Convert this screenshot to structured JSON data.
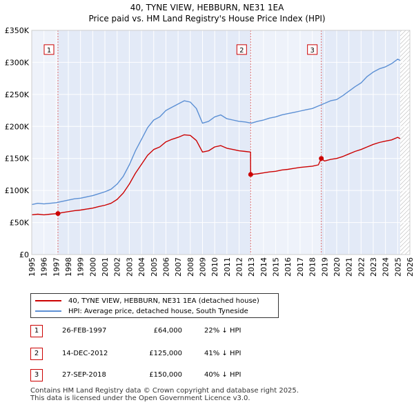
{
  "title": {
    "line1": "40, TYNE VIEW, HEBBURN, NE31 1EA",
    "line2": "Price paid vs. HM Land Registry's House Price Index (HPI)"
  },
  "chart_data": {
    "type": "line",
    "title": "40, TYNE VIEW, HEBBURN, NE31 1EA — Price paid vs. HM Land Registry's House Price Index (HPI)",
    "xlim": [
      1995,
      2026
    ],
    "ylim": [
      0,
      350000
    ],
    "x_ticks": [
      "1995",
      "1996",
      "1997",
      "1998",
      "1999",
      "2000",
      "2001",
      "2002",
      "2003",
      "2004",
      "2005",
      "2006",
      "2007",
      "2008",
      "2009",
      "2010",
      "2011",
      "2012",
      "2013",
      "2014",
      "2015",
      "2016",
      "2017",
      "2018",
      "2019",
      "2020",
      "2021",
      "2022",
      "2023",
      "2024",
      "2025",
      "2026"
    ],
    "y_ticks": [
      {
        "value": 0,
        "label": "£0"
      },
      {
        "value": 50000,
        "label": "£50K"
      },
      {
        "value": 100000,
        "label": "£100K"
      },
      {
        "value": 150000,
        "label": "£150K"
      },
      {
        "value": 200000,
        "label": "£200K"
      },
      {
        "value": 250000,
        "label": "£250K"
      },
      {
        "value": 300000,
        "label": "£300K"
      },
      {
        "value": 350000,
        "label": "£350K"
      }
    ],
    "data_end_year": 2025.2,
    "series": [
      {
        "name": "HPI: Average price, detached house, South Tyneside",
        "color": "#5b8fd4",
        "points": [
          [
            1995.0,
            78000
          ],
          [
            1995.5,
            80000
          ],
          [
            1996.0,
            79000
          ],
          [
            1996.5,
            80000
          ],
          [
            1997.0,
            81000
          ],
          [
            1997.5,
            83000
          ],
          [
            1998.0,
            85000
          ],
          [
            1998.5,
            87000
          ],
          [
            1999.0,
            88000
          ],
          [
            1999.5,
            90000
          ],
          [
            2000.0,
            92000
          ],
          [
            2000.5,
            95000
          ],
          [
            2001.0,
            98000
          ],
          [
            2001.5,
            102000
          ],
          [
            2002.0,
            110000
          ],
          [
            2002.5,
            122000
          ],
          [
            2003.0,
            140000
          ],
          [
            2003.5,
            162000
          ],
          [
            2004.0,
            180000
          ],
          [
            2004.5,
            198000
          ],
          [
            2005.0,
            210000
          ],
          [
            2005.5,
            215000
          ],
          [
            2006.0,
            225000
          ],
          [
            2006.5,
            230000
          ],
          [
            2007.0,
            235000
          ],
          [
            2007.5,
            240000
          ],
          [
            2008.0,
            238000
          ],
          [
            2008.5,
            228000
          ],
          [
            2009.0,
            205000
          ],
          [
            2009.5,
            208000
          ],
          [
            2010.0,
            215000
          ],
          [
            2010.5,
            218000
          ],
          [
            2011.0,
            212000
          ],
          [
            2011.5,
            210000
          ],
          [
            2012.0,
            208000
          ],
          [
            2012.5,
            207000
          ],
          [
            2013.0,
            205000
          ],
          [
            2013.5,
            208000
          ],
          [
            2014.0,
            210000
          ],
          [
            2014.5,
            213000
          ],
          [
            2015.0,
            215000
          ],
          [
            2015.5,
            218000
          ],
          [
            2016.0,
            220000
          ],
          [
            2016.5,
            222000
          ],
          [
            2017.0,
            224000
          ],
          [
            2017.5,
            226000
          ],
          [
            2018.0,
            228000
          ],
          [
            2018.5,
            232000
          ],
          [
            2019.0,
            236000
          ],
          [
            2019.5,
            240000
          ],
          [
            2020.0,
            242000
          ],
          [
            2020.5,
            248000
          ],
          [
            2021.0,
            255000
          ],
          [
            2021.5,
            262000
          ],
          [
            2022.0,
            268000
          ],
          [
            2022.5,
            278000
          ],
          [
            2023.0,
            285000
          ],
          [
            2023.5,
            290000
          ],
          [
            2024.0,
            293000
          ],
          [
            2024.5,
            298000
          ],
          [
            2025.0,
            305000
          ],
          [
            2025.2,
            303000
          ]
        ]
      },
      {
        "name": "40, TYNE VIEW, HEBBURN, NE31 1EA (detached house)",
        "color": "#cc0000",
        "points": [
          [
            1995.0,
            62000
          ],
          [
            1995.5,
            63000
          ],
          [
            1996.0,
            62000
          ],
          [
            1996.5,
            63000
          ],
          [
            1997.15,
            64000
          ],
          [
            1997.5,
            65500
          ],
          [
            1998.0,
            67000
          ],
          [
            1998.5,
            68500
          ],
          [
            1999.0,
            69500
          ],
          [
            1999.5,
            71000
          ],
          [
            2000.0,
            72500
          ],
          [
            2000.5,
            75000
          ],
          [
            2001.0,
            77000
          ],
          [
            2001.5,
            80000
          ],
          [
            2002.0,
            86000
          ],
          [
            2002.5,
            96000
          ],
          [
            2003.0,
            110000
          ],
          [
            2003.5,
            127000
          ],
          [
            2004.0,
            141000
          ],
          [
            2004.5,
            155000
          ],
          [
            2005.0,
            164000
          ],
          [
            2005.5,
            168000
          ],
          [
            2006.0,
            176000
          ],
          [
            2006.5,
            180000
          ],
          [
            2007.0,
            183000
          ],
          [
            2007.5,
            187000
          ],
          [
            2008.0,
            186000
          ],
          [
            2008.5,
            178000
          ],
          [
            2009.0,
            160000
          ],
          [
            2009.5,
            162000
          ],
          [
            2010.0,
            168000
          ],
          [
            2010.5,
            170000
          ],
          [
            2011.0,
            166000
          ],
          [
            2011.5,
            164000
          ],
          [
            2012.0,
            162000
          ],
          [
            2012.5,
            161000
          ],
          [
            2012.94,
            160000
          ],
          [
            2012.95,
            125000
          ],
          [
            2013.5,
            126000
          ],
          [
            2014.0,
            127500
          ],
          [
            2014.5,
            129000
          ],
          [
            2015.0,
            130000
          ],
          [
            2015.5,
            132000
          ],
          [
            2016.0,
            133000
          ],
          [
            2016.5,
            134500
          ],
          [
            2017.0,
            136000
          ],
          [
            2017.5,
            137000
          ],
          [
            2018.0,
            138000
          ],
          [
            2018.5,
            140000
          ],
          [
            2018.74,
            150000
          ],
          [
            2019.0,
            146000
          ],
          [
            2019.5,
            148500
          ],
          [
            2020.0,
            150000
          ],
          [
            2020.5,
            153000
          ],
          [
            2021.0,
            157000
          ],
          [
            2021.5,
            161000
          ],
          [
            2022.0,
            164000
          ],
          [
            2022.5,
            168000
          ],
          [
            2023.0,
            172000
          ],
          [
            2023.5,
            175000
          ],
          [
            2024.0,
            177000
          ],
          [
            2024.5,
            179000
          ],
          [
            2025.0,
            183000
          ],
          [
            2025.2,
            181000
          ]
        ]
      }
    ],
    "annotations": [
      {
        "label": "1",
        "x": 1997.15,
        "y": 64000,
        "label_y": 320000
      },
      {
        "label": "2",
        "x": 2012.95,
        "y": 125000,
        "label_y": 320000
      },
      {
        "label": "3",
        "x": 2018.74,
        "y": 150000,
        "label_y": 320000
      }
    ]
  },
  "legend": {
    "items": [
      {
        "label": "40, TYNE VIEW, HEBBURN, NE31 1EA (detached house)",
        "color": "#cc0000"
      },
      {
        "label": "HPI: Average price, detached house, South Tyneside",
        "color": "#5b8fd4"
      }
    ]
  },
  "sales": [
    {
      "num": "1",
      "date": "26-FEB-1997",
      "price": "£64,000",
      "hpi": "22% ↓ HPI"
    },
    {
      "num": "2",
      "date": "14-DEC-2012",
      "price": "£125,000",
      "hpi": "41% ↓ HPI"
    },
    {
      "num": "3",
      "date": "27-SEP-2018",
      "price": "£150,000",
      "hpi": "40% ↓ HPI"
    }
  ],
  "footer": {
    "line1": "Contains HM Land Registry data © Crown copyright and database right 2025.",
    "line2": "This data is licensed under the Open Government Licence v3.0."
  }
}
